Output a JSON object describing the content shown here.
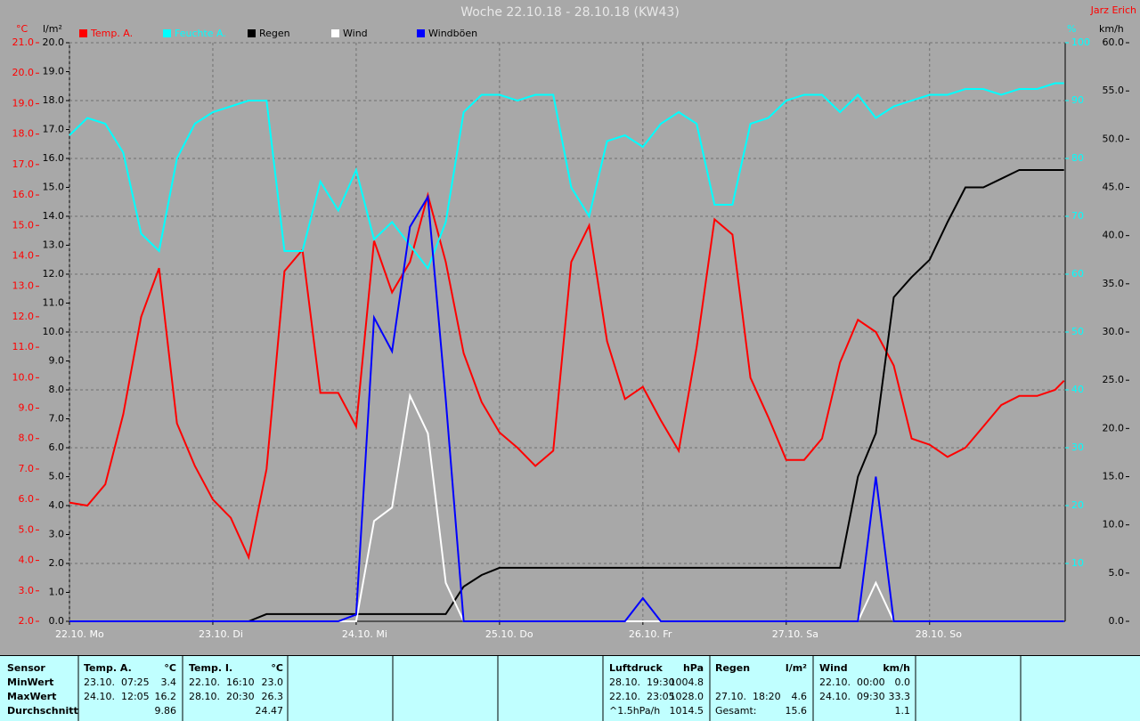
{
  "chart_data": {
    "type": "line",
    "title": "Woche 22.10.18 - 28.10.18 (KW43)",
    "author": "Jarz Erich",
    "y_label": "°C",
    "y2_label": "l/m²",
    "y3_label": "%",
    "y4_label": "km/h",
    "grid": true,
    "xlim": [
      0,
      166.7
    ],
    "xticks": [
      {
        "value": 0,
        "label": "22.10. Mo"
      },
      {
        "value": 24,
        "label": "23.10. Di"
      },
      {
        "value": 48,
        "label": "24.10. Mi"
      },
      {
        "value": 72,
        "label": "25.10. Do"
      },
      {
        "value": 96,
        "label": "26.10. Fr"
      },
      {
        "value": 120,
        "label": "27.10. Sa"
      },
      {
        "value": 144,
        "label": "28.10. So"
      }
    ],
    "ylim": [
      2,
      21
    ],
    "yticks": [
      {
        "value": 2,
        "label": "2.0"
      },
      {
        "value": 3,
        "label": "3.0"
      },
      {
        "value": 4,
        "label": "4.0"
      },
      {
        "value": 5,
        "label": "5.0"
      },
      {
        "value": 6,
        "label": "6.0"
      },
      {
        "value": 7,
        "label": "7.0"
      },
      {
        "value": 8,
        "label": "8.0"
      },
      {
        "value": 9,
        "label": "9.0"
      },
      {
        "value": 10,
        "label": "10.0"
      },
      {
        "value": 11,
        "label": "11.0"
      },
      {
        "value": 12,
        "label": "12.0"
      },
      {
        "value": 13,
        "label": "13.0"
      },
      {
        "value": 14,
        "label": "14.0"
      },
      {
        "value": 15,
        "label": "15.0"
      },
      {
        "value": 16,
        "label": "16.0"
      },
      {
        "value": 17,
        "label": "17.0"
      },
      {
        "value": 18,
        "label": "18.0"
      },
      {
        "value": 19,
        "label": "19.0"
      },
      {
        "value": 20,
        "label": "20.0"
      },
      {
        "value": 21,
        "label": "21.0"
      }
    ],
    "y2lim": [
      0,
      20
    ],
    "y2ticks": [
      {
        "value": 0,
        "label": "0.0"
      },
      {
        "value": 1,
        "label": "1.0"
      },
      {
        "value": 2,
        "label": "2.0"
      },
      {
        "value": 3,
        "label": "3.0"
      },
      {
        "value": 4,
        "label": "4.0"
      },
      {
        "value": 5,
        "label": "5.0"
      },
      {
        "value": 6,
        "label": "6.0"
      },
      {
        "value": 7,
        "label": "7.0"
      },
      {
        "value": 8,
        "label": "8.0"
      },
      {
        "value": 9,
        "label": "9.0"
      },
      {
        "value": 10,
        "label": "10.0"
      },
      {
        "value": 11,
        "label": "11.0"
      },
      {
        "value": 12,
        "label": "12.0"
      },
      {
        "value": 13,
        "label": "13.0"
      },
      {
        "value": 14,
        "label": "14.0"
      },
      {
        "value": 15,
        "label": "15.0"
      },
      {
        "value": 16,
        "label": "16.0"
      },
      {
        "value": 17,
        "label": "17.0"
      },
      {
        "value": 18,
        "label": "18.0"
      },
      {
        "value": 19,
        "label": "19.0"
      },
      {
        "value": 20,
        "label": "20.0"
      }
    ],
    "y3lim": [
      0,
      100
    ],
    "y3ticks": [
      10,
      20,
      30,
      40,
      50,
      60,
      70,
      80,
      90,
      100
    ],
    "y4lim": [
      0,
      60
    ],
    "y4ticks": [
      {
        "value": 0,
        "label": "0.0"
      },
      {
        "value": 5,
        "label": "5.0"
      },
      {
        "value": 10,
        "label": "10.0"
      },
      {
        "value": 15,
        "label": "15.0"
      },
      {
        "value": 20,
        "label": "20.0"
      },
      {
        "value": 25,
        "label": "25.0"
      },
      {
        "value": 30,
        "label": "30.0"
      },
      {
        "value": 35,
        "label": "35.0"
      },
      {
        "value": 40,
        "label": "40.0"
      },
      {
        "value": 45,
        "label": "45.0"
      },
      {
        "value": 50,
        "label": "50.0"
      },
      {
        "value": 55,
        "label": "55.0"
      },
      {
        "value": 60,
        "label": "60.0"
      }
    ],
    "x": [
      0,
      3,
      6,
      9,
      12,
      15,
      18,
      21,
      24,
      27,
      30,
      33,
      36,
      39,
      42,
      45,
      48,
      51,
      54,
      57,
      60,
      63,
      66,
      69,
      72,
      75,
      78,
      81,
      84,
      87,
      90,
      93,
      96,
      99,
      102,
      105,
      108,
      111,
      114,
      117,
      120,
      123,
      126,
      129,
      132,
      135,
      138,
      141,
      144,
      147,
      150,
      153,
      156,
      159,
      162,
      165,
      166.5
    ],
    "series": [
      {
        "name": "Temp. A.",
        "color": "#ff0000",
        "label_color": "#ff0000",
        "axis": "y",
        "values": [
          5.9,
          5.8,
          6.5,
          8.8,
          12.0,
          13.6,
          8.5,
          7.1,
          6.0,
          5.4,
          4.1,
          7.0,
          13.5,
          14.2,
          9.5,
          9.5,
          8.4,
          14.5,
          12.8,
          13.8,
          16.0,
          13.8,
          10.8,
          9.2,
          8.2,
          7.7,
          7.1,
          7.6,
          13.8,
          15.0,
          11.2,
          9.3,
          9.7,
          8.6,
          7.6,
          11.0,
          15.2,
          14.7,
          10.0,
          8.7,
          7.3,
          7.3,
          8.0,
          10.5,
          11.9,
          11.5,
          10.4,
          8.0,
          7.8,
          7.4,
          7.7,
          8.4,
          9.1,
          9.4,
          9.4,
          9.6,
          9.9
        ]
      },
      {
        "name": "Feuchte A.",
        "color": "#00ffff",
        "label_color": "#00ffff",
        "axis": "y3",
        "values": [
          84,
          87,
          86,
          81,
          67,
          64,
          80,
          86,
          88,
          89,
          90,
          90,
          64,
          64,
          76,
          71,
          78,
          66,
          69,
          65,
          61,
          69,
          88,
          91,
          91,
          90,
          91,
          91,
          75,
          70,
          83,
          84,
          82,
          86,
          88,
          86,
          72,
          72,
          86,
          87,
          90,
          91,
          91,
          88,
          91,
          87,
          89,
          90,
          91,
          91,
          92,
          92,
          91,
          92,
          92,
          93,
          93
        ]
      },
      {
        "name": "Regen",
        "color": "#000000",
        "label_color": "#000000",
        "axis": "y2",
        "values": [
          0,
          0,
          0,
          0,
          0,
          0,
          0,
          0,
          0,
          0,
          0,
          0.25,
          0.25,
          0.25,
          0.25,
          0.25,
          0.25,
          0.25,
          0.25,
          0.25,
          0.25,
          0.25,
          1.2,
          1.6,
          1.85,
          1.85,
          1.85,
          1.85,
          1.85,
          1.85,
          1.85,
          1.85,
          1.85,
          1.85,
          1.85,
          1.85,
          1.85,
          1.85,
          1.85,
          1.85,
          1.85,
          1.85,
          1.85,
          1.85,
          5.0,
          6.5,
          11.2,
          11.9,
          12.5,
          13.8,
          15.0,
          15.0,
          15.3,
          15.6,
          15.6,
          15.6,
          15.6
        ]
      },
      {
        "name": "Wind",
        "color": "#ffffff",
        "label_color": "#000000",
        "axis": "y4",
        "values": [
          0,
          0,
          0,
          0,
          0,
          0,
          0,
          0,
          0,
          0,
          0,
          0,
          0,
          0,
          0,
          0,
          0,
          10.4,
          11.8,
          23.4,
          19.5,
          4.0,
          0,
          0,
          0,
          0,
          0,
          0,
          0,
          0,
          0,
          0,
          0,
          0,
          0,
          0,
          0,
          0,
          0,
          0,
          0,
          0,
          0,
          0,
          0,
          4.0,
          0,
          0,
          0,
          0,
          0,
          0,
          0,
          0,
          0,
          0,
          0
        ]
      },
      {
        "name": "Windböen",
        "color": "#0000ff",
        "label_color": "#000000",
        "axis": "y4",
        "values": [
          0,
          0,
          0,
          0,
          0,
          0,
          0,
          0,
          0,
          0,
          0,
          0,
          0,
          0,
          0,
          0,
          0.7,
          31.5,
          28,
          40.9,
          44,
          23,
          0,
          0,
          0,
          0,
          0,
          0,
          0,
          0,
          0,
          0,
          2.4,
          0,
          0,
          0,
          0,
          0,
          0,
          0,
          0,
          0,
          0,
          0,
          0,
          15,
          0,
          0,
          0,
          0,
          0,
          0,
          0,
          0,
          0,
          0,
          0
        ]
      }
    ]
  },
  "stats": {
    "row_labels": [
      "Sensor",
      "MinWert",
      "MaxWert",
      "Durchschnitt"
    ],
    "columns": [
      {
        "title": "Temp. A.",
        "unit": "°C",
        "cells": [
          [
            "23.10.  07:25",
            "3.4"
          ],
          [
            "24.10.  12:05",
            "16.2"
          ],
          [
            null,
            "9.86"
          ]
        ]
      },
      {
        "title": "Temp. I.",
        "unit": "°C",
        "cells": [
          [
            "22.10.  16:10",
            "23.0"
          ],
          [
            "28.10.  20:30",
            "26.3"
          ],
          [
            null,
            "24.47"
          ]
        ]
      },
      {
        "title": "Luftdruck",
        "unit": "hPa",
        "cells": [
          [
            "28.10.  19:30",
            "1004.8"
          ],
          [
            "22.10.  23:05",
            "1028.0"
          ],
          [
            "^1.5hPa/h",
            "1014.5"
          ]
        ]
      },
      {
        "title": "Regen",
        "unit": "l/m²",
        "cells": [
          [
            null,
            null
          ],
          [
            "27.10.  18:20",
            "4.6"
          ],
          [
            "Gesamt:",
            "15.6"
          ]
        ]
      },
      {
        "title": "Wind",
        "unit": "km/h",
        "cells": [
          [
            "22.10.  00:00",
            "0.0"
          ],
          [
            "24.10.  09:30",
            "33.3"
          ],
          [
            null,
            "1.1"
          ]
        ]
      }
    ]
  }
}
